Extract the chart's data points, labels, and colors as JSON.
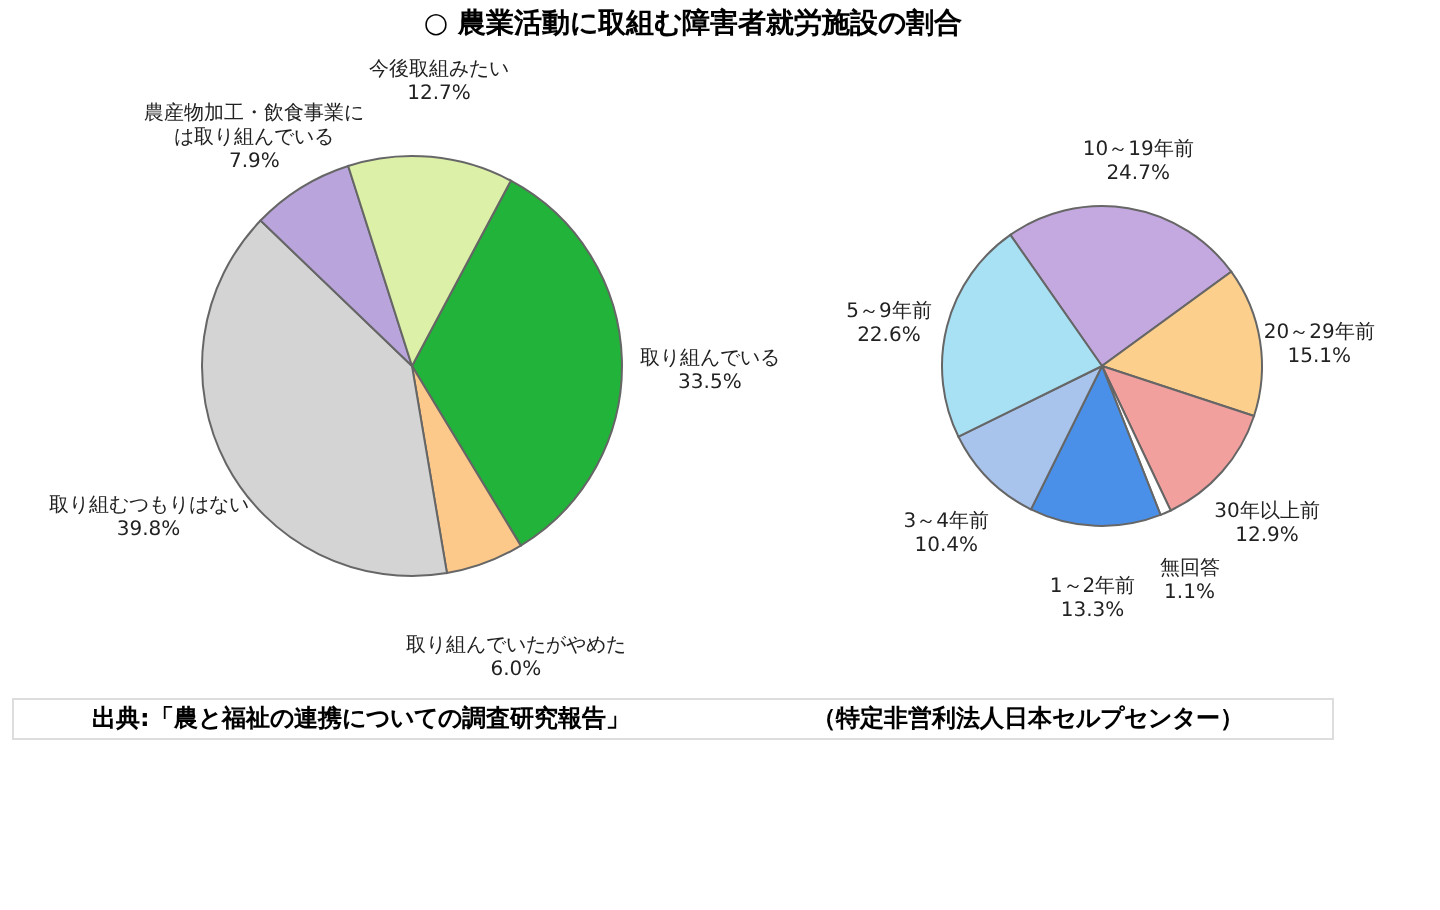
{
  "chart_data": [
    {
      "type": "pie",
      "title": "○ 農業活動に取組む障害者就労施設の割合",
      "categories": [
        "取り組んでいる",
        "取り組んでいたがやめた",
        "取り組むつもりはない",
        "農産物加工・飲食事業には取り組んでいる",
        "今後取組みたい"
      ],
      "values": [
        33.5,
        6.0,
        39.8,
        7.9,
        12.7
      ],
      "value_labels": [
        "33.5%",
        "6.0%",
        "39.8%",
        "7.9%",
        "12.7%"
      ],
      "colors": [
        "#22b33a",
        "#fcc98a",
        "#d4d4d4",
        "#b9a5dc",
        "#dcf0a8"
      ],
      "annotations": [
        "出典:「農と福祉の連携についての調査研究報告」",
        "（特定非営利法人日本セルプセンター）"
      ]
    },
    {
      "type": "pie",
      "categories": [
        "10～19年前",
        "20～29年前",
        "30年以上前",
        "無回答",
        "1～2年前",
        "3～4年前",
        "5～9年前"
      ],
      "values": [
        24.7,
        15.1,
        12.9,
        1.1,
        13.3,
        10.4,
        22.6
      ],
      "value_labels": [
        "24.7%",
        "15.1%",
        "12.9%",
        "1.1%",
        "13.3%",
        "10.4%",
        "22.6%"
      ],
      "colors": [
        "#c4a8e0",
        "#fcd08c",
        "#f2a09e",
        "#ffffff",
        "#4a90e8",
        "#a8c4ec",
        "#a8e0f4"
      ]
    }
  ]
}
